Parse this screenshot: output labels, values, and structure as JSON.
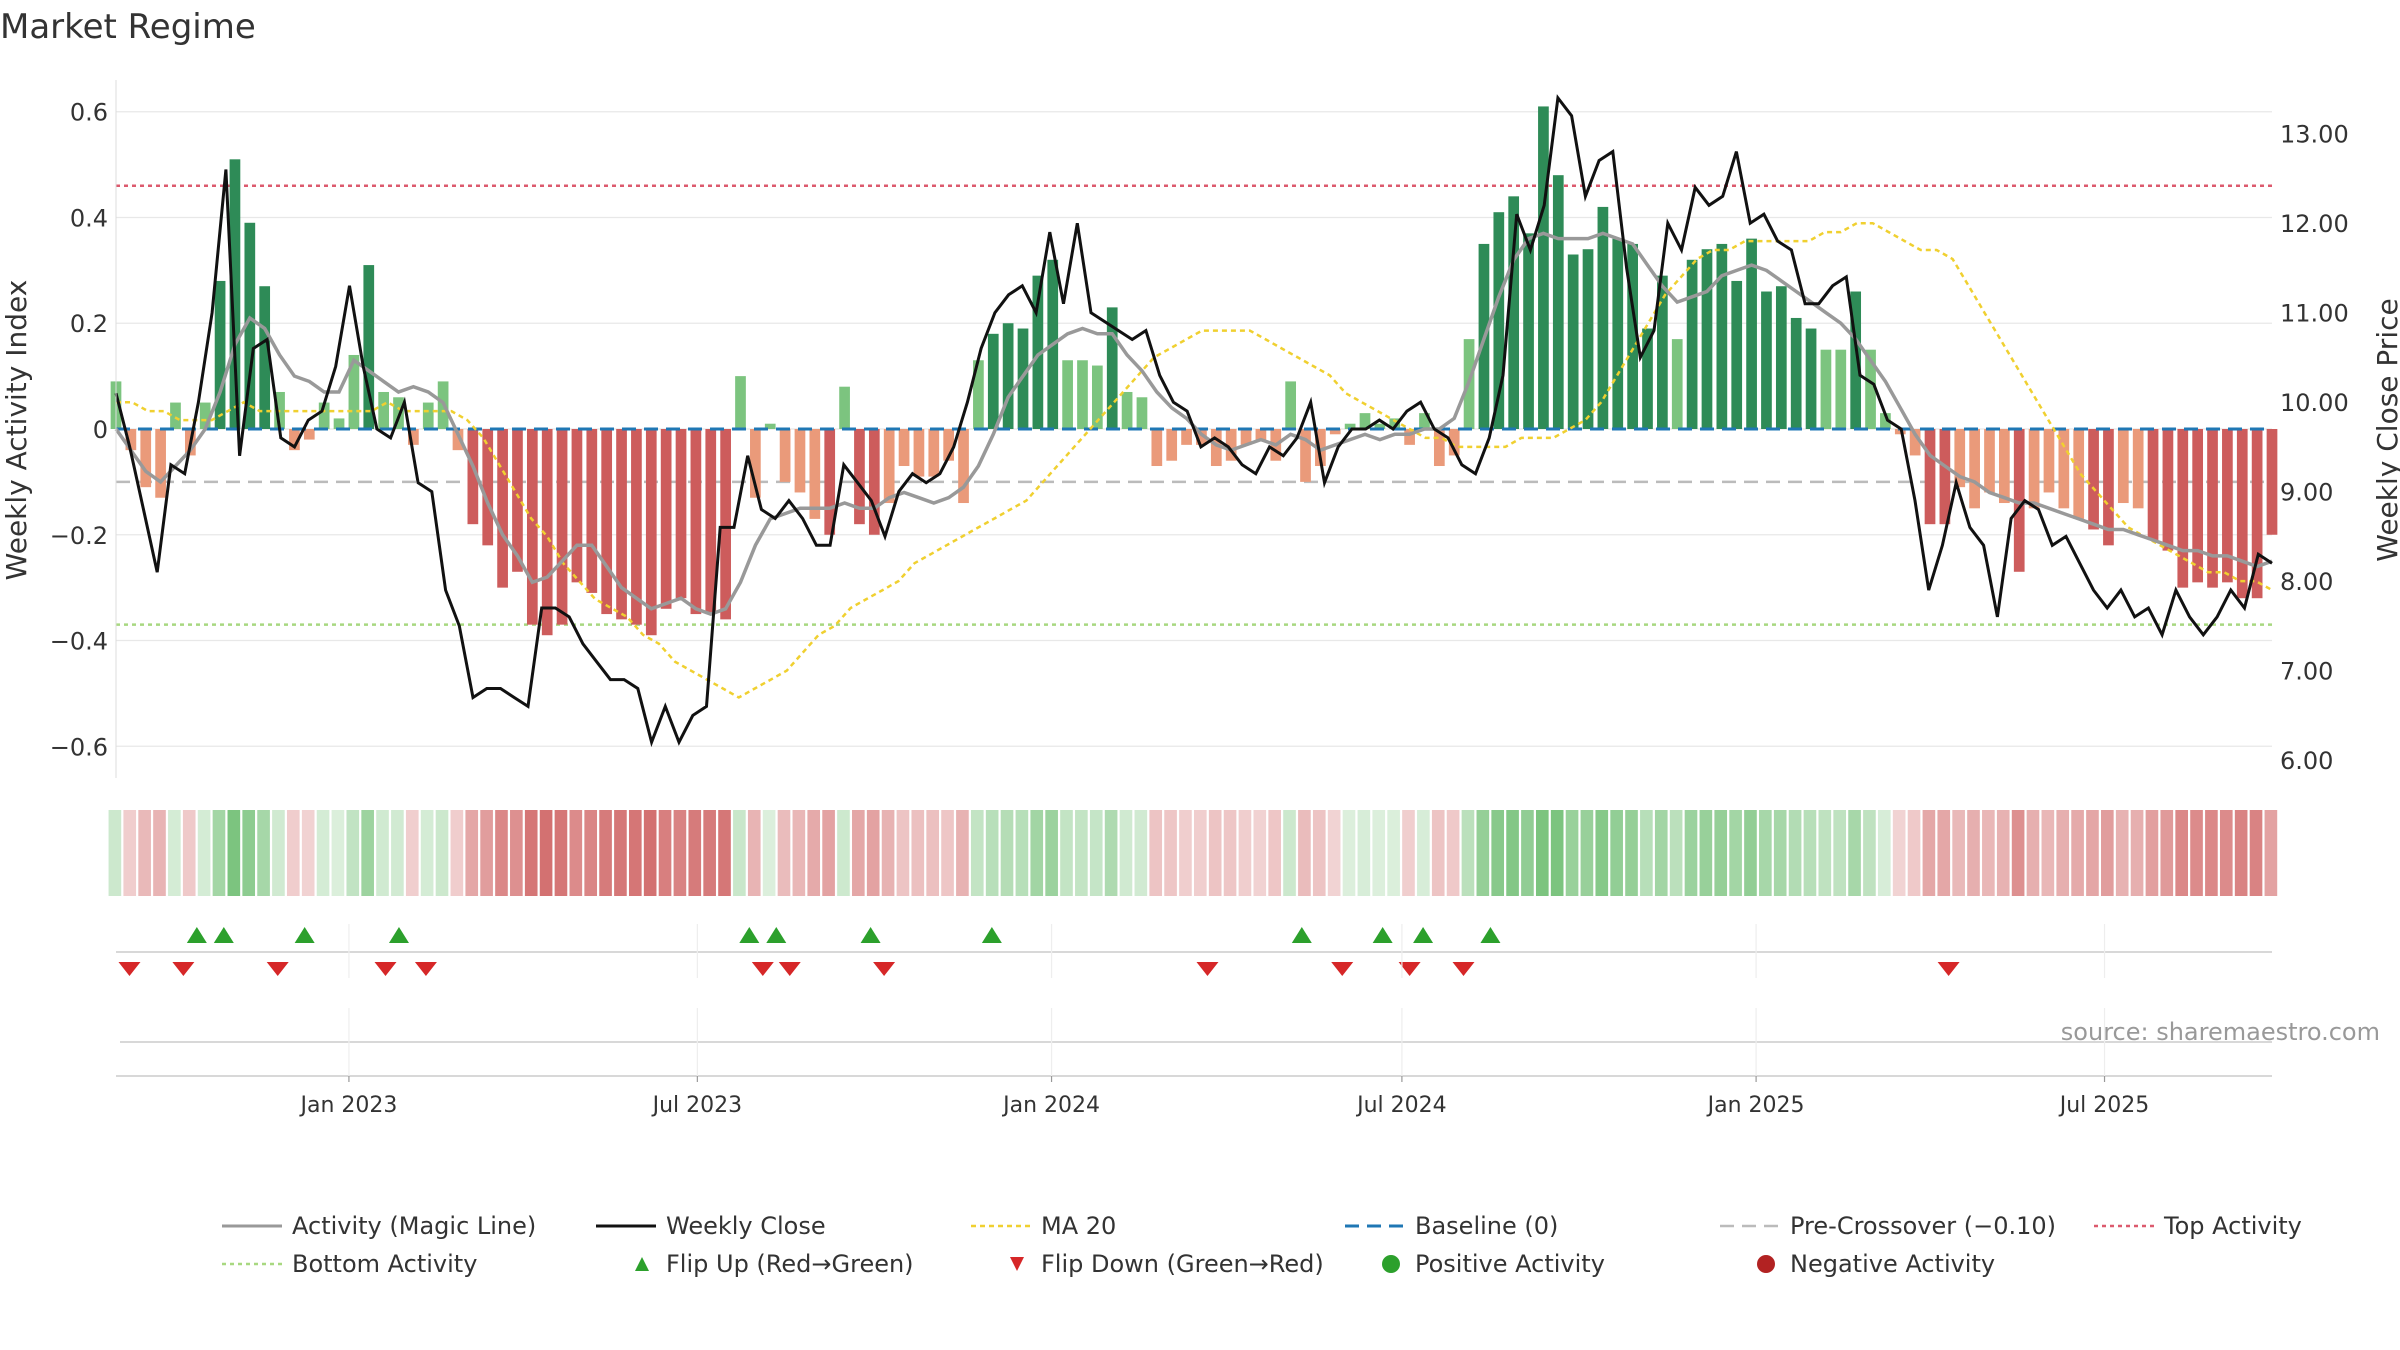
{
  "chart_data": {
    "type": "bar",
    "title": "Market Regime",
    "ylabel": "Weekly Activity Index",
    "y2label": "Weekly Close Price",
    "ylim": [
      -0.66,
      0.66
    ],
    "y2lim": [
      5.8,
      13.6
    ],
    "yticks": [
      -0.6,
      -0.4,
      -0.2,
      0,
      0.2,
      0.4,
      0.6
    ],
    "ytick_labels": [
      "−0.6",
      "−0.4",
      "−0.2",
      "0",
      "0.2",
      "0.4",
      "0.6"
    ],
    "y2ticks": [
      6,
      7,
      8,
      9,
      10,
      11,
      12,
      13
    ],
    "y2tick_labels": [
      "6.00",
      "7.00",
      "8.00",
      "9.00",
      "10.00",
      "11.00",
      "12.00",
      "13.00"
    ],
    "x_start": "2022-09-02",
    "x_end": "2025-09-26",
    "xticks": [
      "2023-01-01",
      "2023-07-01",
      "2024-01-01",
      "2024-07-01",
      "2025-01-01",
      "2025-07-01"
    ],
    "xtick_labels": [
      "Jan 2023",
      "Jul 2023",
      "Jan 2024",
      "Jul 2024",
      "Jan 2025",
      "Jul 2025"
    ],
    "grid": true,
    "legend_position": "bottom",
    "reference_lines": {
      "baseline": 0,
      "pre_crossover": -0.1,
      "top_activity": 0.46,
      "bottom_activity": -0.37
    },
    "activity": [
      0.09,
      -0.04,
      -0.11,
      -0.13,
      0.05,
      -0.05,
      0.05,
      0.28,
      0.51,
      0.39,
      0.27,
      0.07,
      -0.04,
      -0.02,
      0.05,
      0.02,
      0.14,
      0.31,
      0.07,
      0.06,
      -0.03,
      0.05,
      0.09,
      -0.04,
      -0.18,
      -0.22,
      -0.3,
      -0.27,
      -0.37,
      -0.39,
      -0.37,
      -0.29,
      -0.31,
      -0.35,
      -0.36,
      -0.37,
      -0.39,
      -0.34,
      -0.32,
      -0.35,
      -0.35,
      -0.36,
      0.1,
      -0.13,
      0.01,
      -0.1,
      -0.12,
      -0.17,
      -0.2,
      0.08,
      -0.18,
      -0.2,
      -0.14,
      -0.07,
      -0.09,
      -0.09,
      -0.06,
      -0.14,
      0.13,
      0.18,
      0.2,
      0.19,
      0.29,
      0.32,
      0.13,
      0.13,
      0.12,
      0.23,
      0.07,
      0.06,
      -0.07,
      -0.06,
      -0.03,
      -0.03,
      -0.07,
      -0.06,
      -0.03,
      -0.02,
      -0.06,
      0.09,
      -0.1,
      -0.07,
      -0.01,
      0.01,
      0.03,
      0.01,
      0.02,
      -0.03,
      0.03,
      -0.07,
      -0.05,
      0.17,
      0.35,
      0.41,
      0.44,
      0.37,
      0.61,
      0.48,
      0.33,
      0.34,
      0.42,
      0.36,
      0.35,
      0.19,
      0.29,
      0.17,
      0.32,
      0.34,
      0.35,
      0.28,
      0.36,
      0.26,
      0.27,
      0.21,
      0.19,
      0.15,
      0.15,
      0.26,
      0.15,
      0.03,
      -0.01,
      -0.05,
      -0.18,
      -0.18,
      -0.11,
      -0.15,
      -0.12,
      -0.14,
      -0.27,
      -0.15,
      -0.12,
      -0.15,
      -0.17,
      -0.19,
      -0.22,
      -0.14,
      -0.15,
      -0.21,
      -0.23,
      -0.3,
      -0.29,
      -0.3,
      -0.29,
      -0.32,
      -0.32,
      -0.2
    ],
    "series": [
      {
        "name": "Activity (Magic Line)",
        "values": [
          0.0,
          -0.04,
          -0.08,
          -0.1,
          -0.07,
          -0.04,
          0.0,
          0.07,
          0.16,
          0.21,
          0.19,
          0.14,
          0.1,
          0.09,
          0.07,
          0.07,
          0.13,
          0.11,
          0.09,
          0.07,
          0.08,
          0.07,
          0.05,
          -0.01,
          -0.07,
          -0.14,
          -0.2,
          -0.24,
          -0.29,
          -0.28,
          -0.25,
          -0.22,
          -0.22,
          -0.26,
          -0.3,
          -0.32,
          -0.34,
          -0.33,
          -0.32,
          -0.34,
          -0.35,
          -0.34,
          -0.29,
          -0.22,
          -0.17,
          -0.16,
          -0.15,
          -0.15,
          -0.15,
          -0.14,
          -0.15,
          -0.15,
          -0.13,
          -0.12,
          -0.13,
          -0.14,
          -0.13,
          -0.11,
          -0.07,
          -0.01,
          0.06,
          0.1,
          0.14,
          0.16,
          0.18,
          0.19,
          0.18,
          0.18,
          0.14,
          0.11,
          0.07,
          0.04,
          0.02,
          -0.01,
          -0.03,
          -0.04,
          -0.03,
          -0.02,
          -0.03,
          -0.01,
          -0.02,
          -0.04,
          -0.03,
          -0.02,
          -0.01,
          -0.02,
          -0.01,
          -0.01,
          0.0,
          0.0,
          0.02,
          0.09,
          0.17,
          0.25,
          0.32,
          0.36,
          0.37,
          0.36,
          0.36,
          0.36,
          0.37,
          0.36,
          0.35,
          0.31,
          0.27,
          0.24,
          0.25,
          0.26,
          0.29,
          0.3,
          0.31,
          0.3,
          0.28,
          0.26,
          0.24,
          0.22,
          0.2,
          0.17,
          0.13,
          0.09,
          0.04,
          -0.01,
          -0.05,
          -0.07,
          -0.09,
          -0.1,
          -0.12,
          -0.13,
          -0.14,
          -0.14,
          -0.15,
          -0.16,
          -0.17,
          -0.18,
          -0.19,
          -0.19,
          -0.2,
          -0.21,
          -0.22,
          -0.23,
          -0.23,
          -0.24,
          -0.24,
          -0.25,
          -0.26,
          -0.25
        ]
      },
      {
        "name": "Weekly Close",
        "values": [
          10.1,
          9.5,
          8.8,
          8.1,
          9.3,
          9.2,
          10.0,
          11.0,
          12.6,
          9.4,
          10.6,
          10.7,
          9.6,
          9.5,
          9.8,
          9.9,
          10.4,
          11.3,
          10.4,
          9.7,
          9.6,
          10.0,
          9.1,
          9.0,
          7.9,
          7.5,
          6.7,
          6.8,
          6.8,
          6.7,
          6.6,
          7.7,
          7.7,
          7.6,
          7.3,
          7.1,
          6.9,
          6.9,
          6.8,
          6.2,
          6.6,
          6.2,
          6.5,
          6.6,
          8.6,
          8.6,
          9.4,
          8.8,
          8.7,
          8.9,
          8.7,
          8.4,
          8.4,
          9.3,
          9.1,
          8.9,
          8.5,
          9.0,
          9.2,
          9.1,
          9.2,
          9.5,
          10.0,
          10.6,
          11.0,
          11.2,
          11.3,
          11.0,
          11.9,
          11.1,
          12.0,
          11.0,
          10.9,
          10.8,
          10.7,
          10.8,
          10.3,
          10.0,
          9.9,
          9.5,
          9.6,
          9.5,
          9.3,
          9.2,
          9.5,
          9.4,
          9.6,
          10.0,
          9.1,
          9.5,
          9.7,
          9.7,
          9.8,
          9.7,
          9.9,
          10.0,
          9.7,
          9.6,
          9.3,
          9.2,
          9.6,
          10.3,
          12.1,
          11.7,
          12.2,
          13.4,
          13.2,
          12.3,
          12.7,
          12.8,
          11.5,
          10.5,
          10.8,
          12.0,
          11.7,
          12.4,
          12.2,
          12.3,
          12.8,
          12.0,
          12.1,
          11.8,
          11.7,
          11.1,
          11.1,
          11.3,
          11.4,
          10.3,
          10.2,
          9.8,
          9.7,
          8.9,
          7.9,
          8.4,
          9.1,
          8.6,
          8.4,
          7.6,
          8.7,
          8.9,
          8.8,
          8.4,
          8.5,
          8.2,
          7.9,
          7.7,
          7.9,
          7.6,
          7.7,
          7.4,
          7.9,
          7.6,
          7.4,
          7.6,
          7.9,
          7.7,
          8.3,
          8.2
        ]
      },
      {
        "name": "MA 20",
        "values": [
          10.0,
          10.0,
          9.9,
          9.9,
          9.8,
          9.8,
          9.8,
          9.9,
          10.0,
          9.9,
          9.9,
          9.9,
          9.9,
          9.9,
          9.9,
          9.9,
          9.9,
          10.0,
          9.9,
          9.9,
          9.9,
          9.9,
          9.8,
          9.6,
          9.3,
          9.0,
          8.7,
          8.5,
          8.2,
          8.0,
          7.8,
          7.7,
          7.6,
          7.4,
          7.3,
          7.1,
          7.0,
          6.9,
          6.8,
          6.7,
          6.8,
          6.9,
          7.0,
          7.2,
          7.4,
          7.5,
          7.7,
          7.8,
          7.9,
          8.0,
          8.2,
          8.3,
          8.4,
          8.5,
          8.6,
          8.7,
          8.8,
          8.9,
          9.1,
          9.3,
          9.5,
          9.7,
          9.9,
          10.1,
          10.3,
          10.5,
          10.6,
          10.7,
          10.8,
          10.8,
          10.8,
          10.8,
          10.7,
          10.6,
          10.5,
          10.4,
          10.3,
          10.1,
          10.0,
          9.9,
          9.8,
          9.7,
          9.6,
          9.6,
          9.5,
          9.5,
          9.5,
          9.5,
          9.6,
          9.6,
          9.6,
          9.7,
          9.8,
          10.0,
          10.3,
          10.6,
          10.9,
          11.2,
          11.4,
          11.6,
          11.7,
          11.7,
          11.8,
          11.8,
          11.8,
          11.8,
          11.8,
          11.9,
          11.9,
          12.0,
          12.0,
          11.9,
          11.8,
          11.7,
          11.7,
          11.6,
          11.3,
          11.0,
          10.7,
          10.4,
          10.1,
          9.8,
          9.5,
          9.2,
          9.0,
          8.8,
          8.6,
          8.5,
          8.4,
          8.3,
          8.2,
          8.1,
          8.1,
          8.0,
          8.0,
          7.9
        ]
      },
      {
        "name": "Baseline (0)"
      },
      {
        "name": "Pre-Crossover (−0.10)"
      },
      {
        "name": "Top Activity"
      },
      {
        "name": "Bottom Activity"
      },
      {
        "name": "Flip Up (Red→Green)",
        "dates": [
          "2022-10-14",
          "2022-10-28",
          "2022-12-09",
          "2023-01-27",
          "2023-07-28",
          "2023-08-11",
          "2023-09-29",
          "2023-12-01",
          "2024-05-10",
          "2024-06-21",
          "2024-07-12",
          "2024-08-16"
        ]
      },
      {
        "name": "Flip Down (Green→Red)",
        "dates": [
          "2022-09-09",
          "2022-10-07",
          "2022-11-25",
          "2023-01-20",
          "2023-02-10",
          "2023-08-04",
          "2023-08-18",
          "2023-10-06",
          "2024-03-22",
          "2024-05-31",
          "2024-07-05",
          "2024-08-02",
          "2025-04-11"
        ]
      },
      {
        "name": "Positive Activity"
      },
      {
        "name": "Negative Activity"
      }
    ],
    "colors": {
      "strong_green": "#2e8b57",
      "light_green": "#7cc47f",
      "strong_red": "#cd5c5c",
      "light_red": "#ea9a7a",
      "magic_line": "#999999",
      "close": "#111111",
      "ma20": "#f0d030",
      "baseline": "#1f77b4",
      "pre_crossover": "#bbbbbb",
      "top_activity": "#dc5a6e",
      "bottom_activity": "#a8d880",
      "flip_up": "#2ca02c",
      "flip_down": "#d62728",
      "positive": "#2ca02c",
      "negative": "#b22222"
    },
    "source_note": "source: sharemaestro.com"
  }
}
